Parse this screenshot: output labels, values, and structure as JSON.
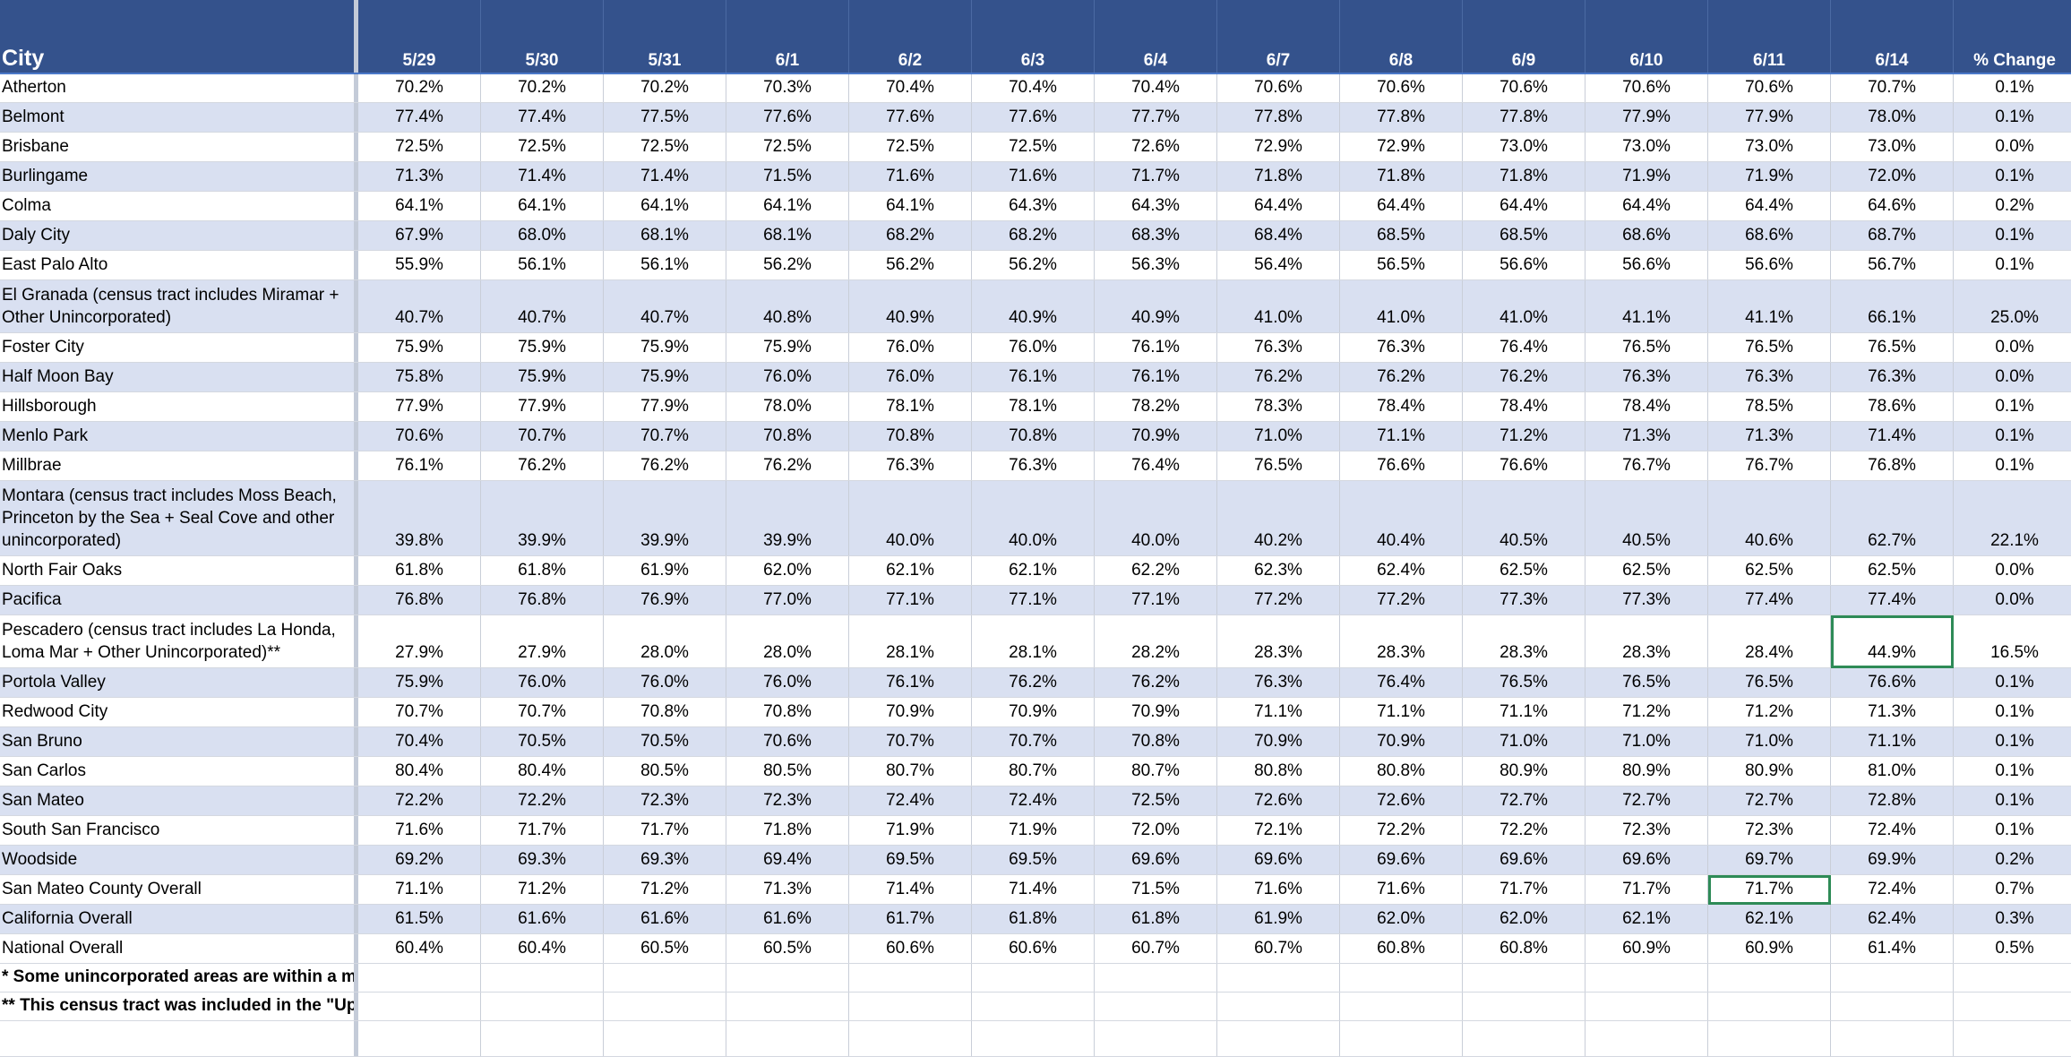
{
  "header": {
    "city_label": "City",
    "columns": [
      "5/29",
      "5/30",
      "5/31",
      "6/1",
      "6/2",
      "6/3",
      "6/4",
      "6/7",
      "6/8",
      "6/9",
      "6/10",
      "6/11",
      "6/14",
      "% Change"
    ]
  },
  "rows": [
    {
      "city": "Atherton",
      "values": [
        "70.2%",
        "70.2%",
        "70.2%",
        "70.3%",
        "70.4%",
        "70.4%",
        "70.4%",
        "70.6%",
        "70.6%",
        "70.6%",
        "70.6%",
        "70.6%",
        "70.7%",
        "0.1%"
      ]
    },
    {
      "city": "Belmont",
      "values": [
        "77.4%",
        "77.4%",
        "77.5%",
        "77.6%",
        "77.6%",
        "77.6%",
        "77.7%",
        "77.8%",
        "77.8%",
        "77.8%",
        "77.9%",
        "77.9%",
        "78.0%",
        "0.1%"
      ]
    },
    {
      "city": "Brisbane",
      "values": [
        "72.5%",
        "72.5%",
        "72.5%",
        "72.5%",
        "72.5%",
        "72.5%",
        "72.6%",
        "72.9%",
        "72.9%",
        "73.0%",
        "73.0%",
        "73.0%",
        "73.0%",
        "0.0%"
      ]
    },
    {
      "city": "Burlingame",
      "values": [
        "71.3%",
        "71.4%",
        "71.4%",
        "71.5%",
        "71.6%",
        "71.6%",
        "71.7%",
        "71.8%",
        "71.8%",
        "71.8%",
        "71.9%",
        "71.9%",
        "72.0%",
        "0.1%"
      ]
    },
    {
      "city": "Colma",
      "values": [
        "64.1%",
        "64.1%",
        "64.1%",
        "64.1%",
        "64.1%",
        "64.3%",
        "64.3%",
        "64.4%",
        "64.4%",
        "64.4%",
        "64.4%",
        "64.4%",
        "64.6%",
        "0.2%"
      ]
    },
    {
      "city": "Daly City",
      "values": [
        "67.9%",
        "68.0%",
        "68.1%",
        "68.1%",
        "68.2%",
        "68.2%",
        "68.3%",
        "68.4%",
        "68.5%",
        "68.5%",
        "68.6%",
        "68.6%",
        "68.7%",
        "0.1%"
      ]
    },
    {
      "city": "East Palo Alto",
      "values": [
        "55.9%",
        "56.1%",
        "56.1%",
        "56.2%",
        "56.2%",
        "56.2%",
        "56.3%",
        "56.4%",
        "56.5%",
        "56.6%",
        "56.6%",
        "56.6%",
        "56.7%",
        "0.1%"
      ]
    },
    {
      "city": "El Granada (census tract includes Miramar + Other Unincorporated)",
      "values": [
        "40.7%",
        "40.7%",
        "40.7%",
        "40.8%",
        "40.9%",
        "40.9%",
        "40.9%",
        "41.0%",
        "41.0%",
        "41.0%",
        "41.1%",
        "41.1%",
        "66.1%",
        "25.0%"
      ]
    },
    {
      "city": "Foster City",
      "values": [
        "75.9%",
        "75.9%",
        "75.9%",
        "75.9%",
        "76.0%",
        "76.0%",
        "76.1%",
        "76.3%",
        "76.3%",
        "76.4%",
        "76.5%",
        "76.5%",
        "76.5%",
        "0.0%"
      ]
    },
    {
      "city": "Half Moon Bay",
      "values": [
        "75.8%",
        "75.9%",
        "75.9%",
        "76.0%",
        "76.0%",
        "76.1%",
        "76.1%",
        "76.2%",
        "76.2%",
        "76.2%",
        "76.3%",
        "76.3%",
        "76.3%",
        "0.0%"
      ]
    },
    {
      "city": "Hillsborough",
      "values": [
        "77.9%",
        "77.9%",
        "77.9%",
        "78.0%",
        "78.1%",
        "78.1%",
        "78.2%",
        "78.3%",
        "78.4%",
        "78.4%",
        "78.4%",
        "78.5%",
        "78.6%",
        "0.1%"
      ]
    },
    {
      "city": "Menlo Park",
      "values": [
        "70.6%",
        "70.7%",
        "70.7%",
        "70.8%",
        "70.8%",
        "70.8%",
        "70.9%",
        "71.0%",
        "71.1%",
        "71.2%",
        "71.3%",
        "71.3%",
        "71.4%",
        "0.1%"
      ]
    },
    {
      "city": "Millbrae",
      "values": [
        "76.1%",
        "76.2%",
        "76.2%",
        "76.2%",
        "76.3%",
        "76.3%",
        "76.4%",
        "76.5%",
        "76.6%",
        "76.6%",
        "76.7%",
        "76.7%",
        "76.8%",
        "0.1%"
      ]
    },
    {
      "city": "Montara (census tract includes Moss Beach, Princeton by the Sea + Seal Cove and other unincorporated)",
      "values": [
        "39.8%",
        "39.9%",
        "39.9%",
        "39.9%",
        "40.0%",
        "40.0%",
        "40.0%",
        "40.2%",
        "40.4%",
        "40.5%",
        "40.5%",
        "40.6%",
        "62.7%",
        "22.1%"
      ]
    },
    {
      "city": "North Fair Oaks",
      "values": [
        "61.8%",
        "61.8%",
        "61.9%",
        "62.0%",
        "62.1%",
        "62.1%",
        "62.2%",
        "62.3%",
        "62.4%",
        "62.5%",
        "62.5%",
        "62.5%",
        "62.5%",
        "0.0%"
      ]
    },
    {
      "city": "Pacifica",
      "values": [
        "76.8%",
        "76.8%",
        "76.9%",
        "77.0%",
        "77.1%",
        "77.1%",
        "77.1%",
        "77.2%",
        "77.2%",
        "77.3%",
        "77.3%",
        "77.4%",
        "77.4%",
        "0.0%"
      ]
    },
    {
      "city": "Pescadero (census tract includes La Honda, Loma Mar + Other Unincorporated)**",
      "values": [
        "27.9%",
        "27.9%",
        "28.0%",
        "28.0%",
        "28.1%",
        "28.1%",
        "28.2%",
        "28.3%",
        "28.3%",
        "28.3%",
        "28.3%",
        "28.4%",
        "44.9%",
        "16.5%"
      ]
    },
    {
      "city": "Portola Valley",
      "values": [
        "75.9%",
        "76.0%",
        "76.0%",
        "76.0%",
        "76.1%",
        "76.2%",
        "76.2%",
        "76.3%",
        "76.4%",
        "76.5%",
        "76.5%",
        "76.5%",
        "76.6%",
        "0.1%"
      ]
    },
    {
      "city": "Redwood City",
      "values": [
        "70.7%",
        "70.7%",
        "70.8%",
        "70.8%",
        "70.9%",
        "70.9%",
        "70.9%",
        "71.1%",
        "71.1%",
        "71.1%",
        "71.2%",
        "71.2%",
        "71.3%",
        "0.1%"
      ]
    },
    {
      "city": "San Bruno",
      "values": [
        "70.4%",
        "70.5%",
        "70.5%",
        "70.6%",
        "70.7%",
        "70.7%",
        "70.8%",
        "70.9%",
        "70.9%",
        "71.0%",
        "71.0%",
        "71.0%",
        "71.1%",
        "0.1%"
      ]
    },
    {
      "city": "San Carlos",
      "values": [
        "80.4%",
        "80.4%",
        "80.5%",
        "80.5%",
        "80.7%",
        "80.7%",
        "80.7%",
        "80.8%",
        "80.8%",
        "80.9%",
        "80.9%",
        "80.9%",
        "81.0%",
        "0.1%"
      ]
    },
    {
      "city": "San Mateo",
      "values": [
        "72.2%",
        "72.2%",
        "72.3%",
        "72.3%",
        "72.4%",
        "72.4%",
        "72.5%",
        "72.6%",
        "72.6%",
        "72.7%",
        "72.7%",
        "72.7%",
        "72.8%",
        "0.1%"
      ]
    },
    {
      "city": "South San Francisco",
      "values": [
        "71.6%",
        "71.7%",
        "71.7%",
        "71.8%",
        "71.9%",
        "71.9%",
        "72.0%",
        "72.1%",
        "72.2%",
        "72.2%",
        "72.3%",
        "72.3%",
        "72.4%",
        "0.1%"
      ]
    },
    {
      "city": "Woodside",
      "values": [
        "69.2%",
        "69.3%",
        "69.3%",
        "69.4%",
        "69.5%",
        "69.5%",
        "69.6%",
        "69.6%",
        "69.6%",
        "69.6%",
        "69.6%",
        "69.7%",
        "69.9%",
        "0.2%"
      ]
    },
    {
      "city": "San Mateo County Overall",
      "values": [
        "71.1%",
        "71.2%",
        "71.2%",
        "71.3%",
        "71.4%",
        "71.4%",
        "71.5%",
        "71.6%",
        "71.6%",
        "71.7%",
        "71.7%",
        "71.7%",
        "72.4%",
        "0.7%"
      ]
    },
    {
      "city": "California Overall",
      "values": [
        "61.5%",
        "61.6%",
        "61.6%",
        "61.6%",
        "61.7%",
        "61.8%",
        "61.8%",
        "61.9%",
        "62.0%",
        "62.0%",
        "62.1%",
        "62.1%",
        "62.4%",
        "0.3%"
      ]
    },
    {
      "city": "National Overall",
      "values": [
        "60.4%",
        "60.4%",
        "60.5%",
        "60.5%",
        "60.6%",
        "60.6%",
        "60.7%",
        "60.7%",
        "60.8%",
        "60.8%",
        "60.9%",
        "60.9%",
        "61.4%",
        "0.5%"
      ]
    }
  ],
  "notes": [
    "* Some unincorporated areas are within a mu",
    "** This census tract was included in the \"Upo"
  ],
  "colors": {
    "header_bg": "#34528c",
    "band_bg": "#d9e0f1",
    "selection": "#2e8b57"
  }
}
